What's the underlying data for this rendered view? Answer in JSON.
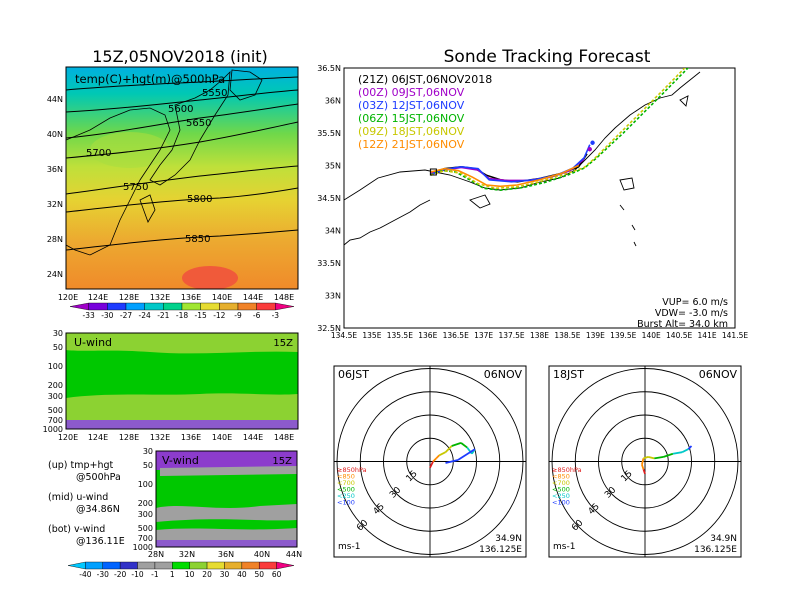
{
  "left_panel": {
    "title": "15Z,05NOV2018 (init)",
    "map_label": "temp(C)+hgt(m)@500hPa",
    "contours": [
      "5550",
      "5600",
      "5650",
      "5700",
      "5750",
      "5800",
      "5850"
    ],
    "lat_ticks": [
      "44N",
      "40N",
      "36N",
      "32N",
      "28N",
      "24N"
    ],
    "lon_ticks": [
      "120E",
      "124E",
      "128E",
      "132E",
      "136E",
      "140E",
      "144E",
      "148E"
    ],
    "temp_colorbar": {
      "labels": [
        "-33",
        "-30",
        "-27",
        "-24",
        "-21",
        "-18",
        "-15",
        "-12",
        "-9",
        "-6",
        "-3"
      ],
      "colors": [
        "#a000c8",
        "#7800dc",
        "#1e3cff",
        "#00a0ff",
        "#00c8c8",
        "#00d28c",
        "#a0e632",
        "#e6dc32",
        "#e6af2d",
        "#f08228",
        "#fa3c3c",
        "#f00082"
      ]
    },
    "uwind": {
      "label": "U-wind",
      "time": "15Z",
      "y_ticks": [
        "30",
        "50",
        "100",
        "200",
        "300",
        "500",
        "700",
        "1000"
      ],
      "x_ticks": [
        "120E",
        "124E",
        "128E",
        "132E",
        "136E",
        "140E",
        "144E",
        "148E"
      ]
    },
    "vwind": {
      "label": "V-wind",
      "time": "15Z",
      "y_ticks": [
        "30",
        "50",
        "100",
        "200",
        "300",
        "500",
        "700",
        "1000"
      ],
      "x_ticks": [
        "28N",
        "32N",
        "36N",
        "40N",
        "44N"
      ]
    },
    "notes": [
      "(up) tmp+hgt",
      "@500hPa",
      "(mid) u-wind",
      "@34.86N",
      "(bot) v-wind",
      "@136.11E"
    ],
    "wind_colorbar": {
      "labels": [
        "-40",
        "-30",
        "-20",
        "-10",
        "-1",
        "1",
        "10",
        "20",
        "30",
        "40",
        "50",
        "60"
      ],
      "colors": [
        "#00c8ff",
        "#00a0ff",
        "#0064ff",
        "#3232c8",
        "#a0a0a0",
        "#a0a0a0",
        "#00dc00",
        "#8cd232",
        "#e6dc32",
        "#e6af2d",
        "#f08228",
        "#fa3c3c",
        "#f00082"
      ]
    }
  },
  "right_panel": {
    "title": "Sonde Tracking Forecast",
    "legend": [
      {
        "text": "(21Z) 06JST,06NOV2018",
        "color": "#000000"
      },
      {
        "text": "(00Z) 09JST,06NOV",
        "color": "#a000c8"
      },
      {
        "text": "(03Z) 12JST,06NOV",
        "color": "#1e3cff"
      },
      {
        "text": "(06Z) 15JST,06NOV",
        "color": "#00b400"
      },
      {
        "text": "(09Z) 18JST,06NOV",
        "color": "#c8c800"
      },
      {
        "text": "(12Z) 21JST,06NOV",
        "color": "#ff8c00"
      }
    ],
    "lat_ticks": [
      "36.5N",
      "36N",
      "35.5N",
      "35N",
      "34.5N",
      "34N",
      "33.5N",
      "33N",
      "32.5N"
    ],
    "lon_ticks": [
      "134.5E",
      "135E",
      "135.5E",
      "136E",
      "136.5E",
      "137E",
      "137.5E",
      "138E",
      "138.5E",
      "139E",
      "139.5E",
      "140E",
      "140.5E",
      "141E",
      "141.5E"
    ],
    "info": [
      "VUP=  6.0 m/s",
      "VDW= -3.0 m/s",
      "Burst Alt= 34.0 km"
    ]
  },
  "hodographs": [
    {
      "time": "06JST",
      "date": "06NOV",
      "lat": "34.9N",
      "lon": "136.125E",
      "unit": "ms-1",
      "ring_labels": [
        "15",
        "30",
        "45",
        "60"
      ],
      "levels": [
        {
          "t": "≥850hPa",
          "c": "#e01e1e"
        },
        {
          "t": "<850",
          "c": "#ff8c00"
        },
        {
          "t": "<700",
          "c": "#c8c800"
        },
        {
          "t": "<500",
          "c": "#00b400"
        },
        {
          "t": "<250",
          "c": "#00c8c8"
        },
        {
          "t": "<100",
          "c": "#1e3cff"
        }
      ]
    },
    {
      "time": "18JST",
      "date": "06NOV",
      "lat": "34.9N",
      "lon": "136.125E",
      "unit": "ms-1",
      "ring_labels": [
        "15",
        "30",
        "45",
        "60"
      ],
      "levels": [
        {
          "t": "≥850hPa",
          "c": "#e01e1e"
        },
        {
          "t": "<850",
          "c": "#ff8c00"
        },
        {
          "t": "<700",
          "c": "#c8c800"
        },
        {
          "t": "<500",
          "c": "#00b400"
        },
        {
          "t": "<250",
          "c": "#00c8c8"
        },
        {
          "t": "<100",
          "c": "#1e3cff"
        }
      ]
    }
  ],
  "chart_data": [
    {
      "type": "heatmap",
      "title": "15Z,05NOV2018 (init)",
      "annotation": "temp(C)+hgt(m)@500hPa",
      "xlim": [
        120,
        150
      ],
      "ylim": [
        22,
        47
      ],
      "x_ticks": [
        "120E",
        "124E",
        "128E",
        "132E",
        "136E",
        "140E",
        "144E",
        "148E"
      ],
      "y_ticks": [
        "44N",
        "40N",
        "36N",
        "32N",
        "28N",
        "24N"
      ],
      "contours": [
        5550,
        5600,
        5650,
        5700,
        5750,
        5800,
        5850
      ],
      "colorbar": [
        -33,
        -30,
        -27,
        -24,
        -21,
        -18,
        -15,
        -12,
        -9,
        -6,
        -3
      ]
    },
    {
      "type": "heatmap",
      "title": "U-wind",
      "time": "15Z",
      "xlim": [
        120,
        150
      ],
      "ylevels_hPa": [
        30,
        50,
        100,
        200,
        300,
        500,
        700,
        1000
      ],
      "note": "@34.86N"
    },
    {
      "type": "heatmap",
      "title": "V-wind",
      "time": "15Z",
      "xlim": [
        26,
        44
      ],
      "ylevels_hPa": [
        30,
        50,
        100,
        200,
        300,
        500,
        700,
        1000
      ],
      "note": "@136.11E",
      "colorbar": [
        -40,
        -30,
        -20,
        -10,
        -1,
        1,
        10,
        20,
        30,
        40,
        50,
        60
      ]
    },
    {
      "type": "line",
      "title": "Sonde Tracking Forecast",
      "xlim": [
        134.5,
        141.5
      ],
      "ylim": [
        32.5,
        36.5
      ],
      "series": [
        {
          "name": "(21Z) 06JST,06NOV2018",
          "color": "#000000",
          "x": [
            136.05,
            136.3,
            136.6,
            136.85,
            137.05,
            137.3,
            137.6,
            138.0,
            138.4,
            138.7,
            138.85
          ],
          "y": [
            34.88,
            34.95,
            34.98,
            34.95,
            34.85,
            34.78,
            34.75,
            34.8,
            34.88,
            34.98,
            35.18
          ]
        },
        {
          "name": "(00Z) 09JST,06NOV",
          "color": "#a000c8",
          "x": [
            136.05,
            136.3,
            136.6,
            136.9,
            137.1,
            137.4,
            137.8,
            138.2,
            138.55,
            138.8
          ],
          "y": [
            34.88,
            34.93,
            34.97,
            34.93,
            34.8,
            34.77,
            34.77,
            34.82,
            34.92,
            35.1
          ]
        },
        {
          "name": "(03Z) 12JST,06NOV",
          "color": "#1e3cff",
          "x": [
            136.05,
            136.3,
            136.6,
            136.9,
            137.1,
            137.5,
            137.9,
            138.3,
            138.6,
            138.8,
            138.9
          ],
          "y": [
            34.86,
            34.94,
            34.98,
            34.95,
            34.78,
            34.75,
            34.78,
            34.85,
            34.96,
            35.12,
            35.32
          ]
        },
        {
          "name": "(06Z) 15JST,06NOV",
          "color": "#00b400",
          "x": [
            136.05,
            136.2,
            136.5,
            136.75,
            137.0,
            137.3,
            137.7,
            138.1,
            138.5,
            138.8,
            139.0,
            139.5,
            140.2,
            141.0
          ],
          "y": [
            34.85,
            34.93,
            34.9,
            34.78,
            34.65,
            34.62,
            34.66,
            34.74,
            34.85,
            34.96,
            35.1,
            35.5,
            36.1,
            36.8
          ]
        },
        {
          "name": "(09Z) 18JST,06NOV",
          "color": "#c8c800",
          "x": [
            136.05,
            136.3,
            136.6,
            136.9,
            137.2,
            137.6,
            138.0,
            138.4,
            138.8,
            139.0,
            139.5,
            140.2,
            141.0
          ],
          "y": [
            34.85,
            34.92,
            34.88,
            34.72,
            34.65,
            34.67,
            34.75,
            34.85,
            34.97,
            35.12,
            35.55,
            36.15,
            36.85
          ]
        },
        {
          "name": "(12Z) 21JST,06NOV",
          "color": "#ff8c00",
          "x": [
            136.05,
            136.3,
            136.55,
            136.8,
            137.05,
            137.3,
            137.6,
            138.0,
            138.4,
            138.7
          ],
          "y": [
            34.9,
            34.95,
            34.92,
            34.82,
            34.7,
            34.68,
            34.7,
            34.78,
            34.88,
            35.0
          ]
        }
      ],
      "annotations": [
        "VUP=  6.0 m/s",
        "VDW= -3.0 m/s",
        "Burst Alt= 34.0 km"
      ]
    },
    {
      "type": "line",
      "title": "06JST 06NOV",
      "ring_labels": [
        15,
        30,
        45,
        60
      ],
      "units": "ms-1",
      "series": [
        {
          "name": "hodograph",
          "x": [
            0,
            2,
            4,
            6,
            10,
            14,
            20,
            24,
            27,
            29,
            18,
            10
          ],
          "y": [
            -4,
            0,
            2,
            4,
            6,
            10,
            12,
            9,
            5,
            8,
            1,
            -1
          ]
        }
      ]
    },
    {
      "type": "line",
      "title": "18JST 06NOV",
      "ring_labels": [
        15,
        30,
        45,
        60
      ],
      "units": "ms-1",
      "series": [
        {
          "name": "hodograph",
          "x": [
            0,
            -1,
            -2,
            -1,
            2,
            6,
            12,
            18,
            24,
            28,
            30
          ],
          "y": [
            -8,
            -5,
            -2,
            2,
            3,
            2,
            3,
            5,
            6,
            8,
            10
          ]
        }
      ]
    }
  ]
}
